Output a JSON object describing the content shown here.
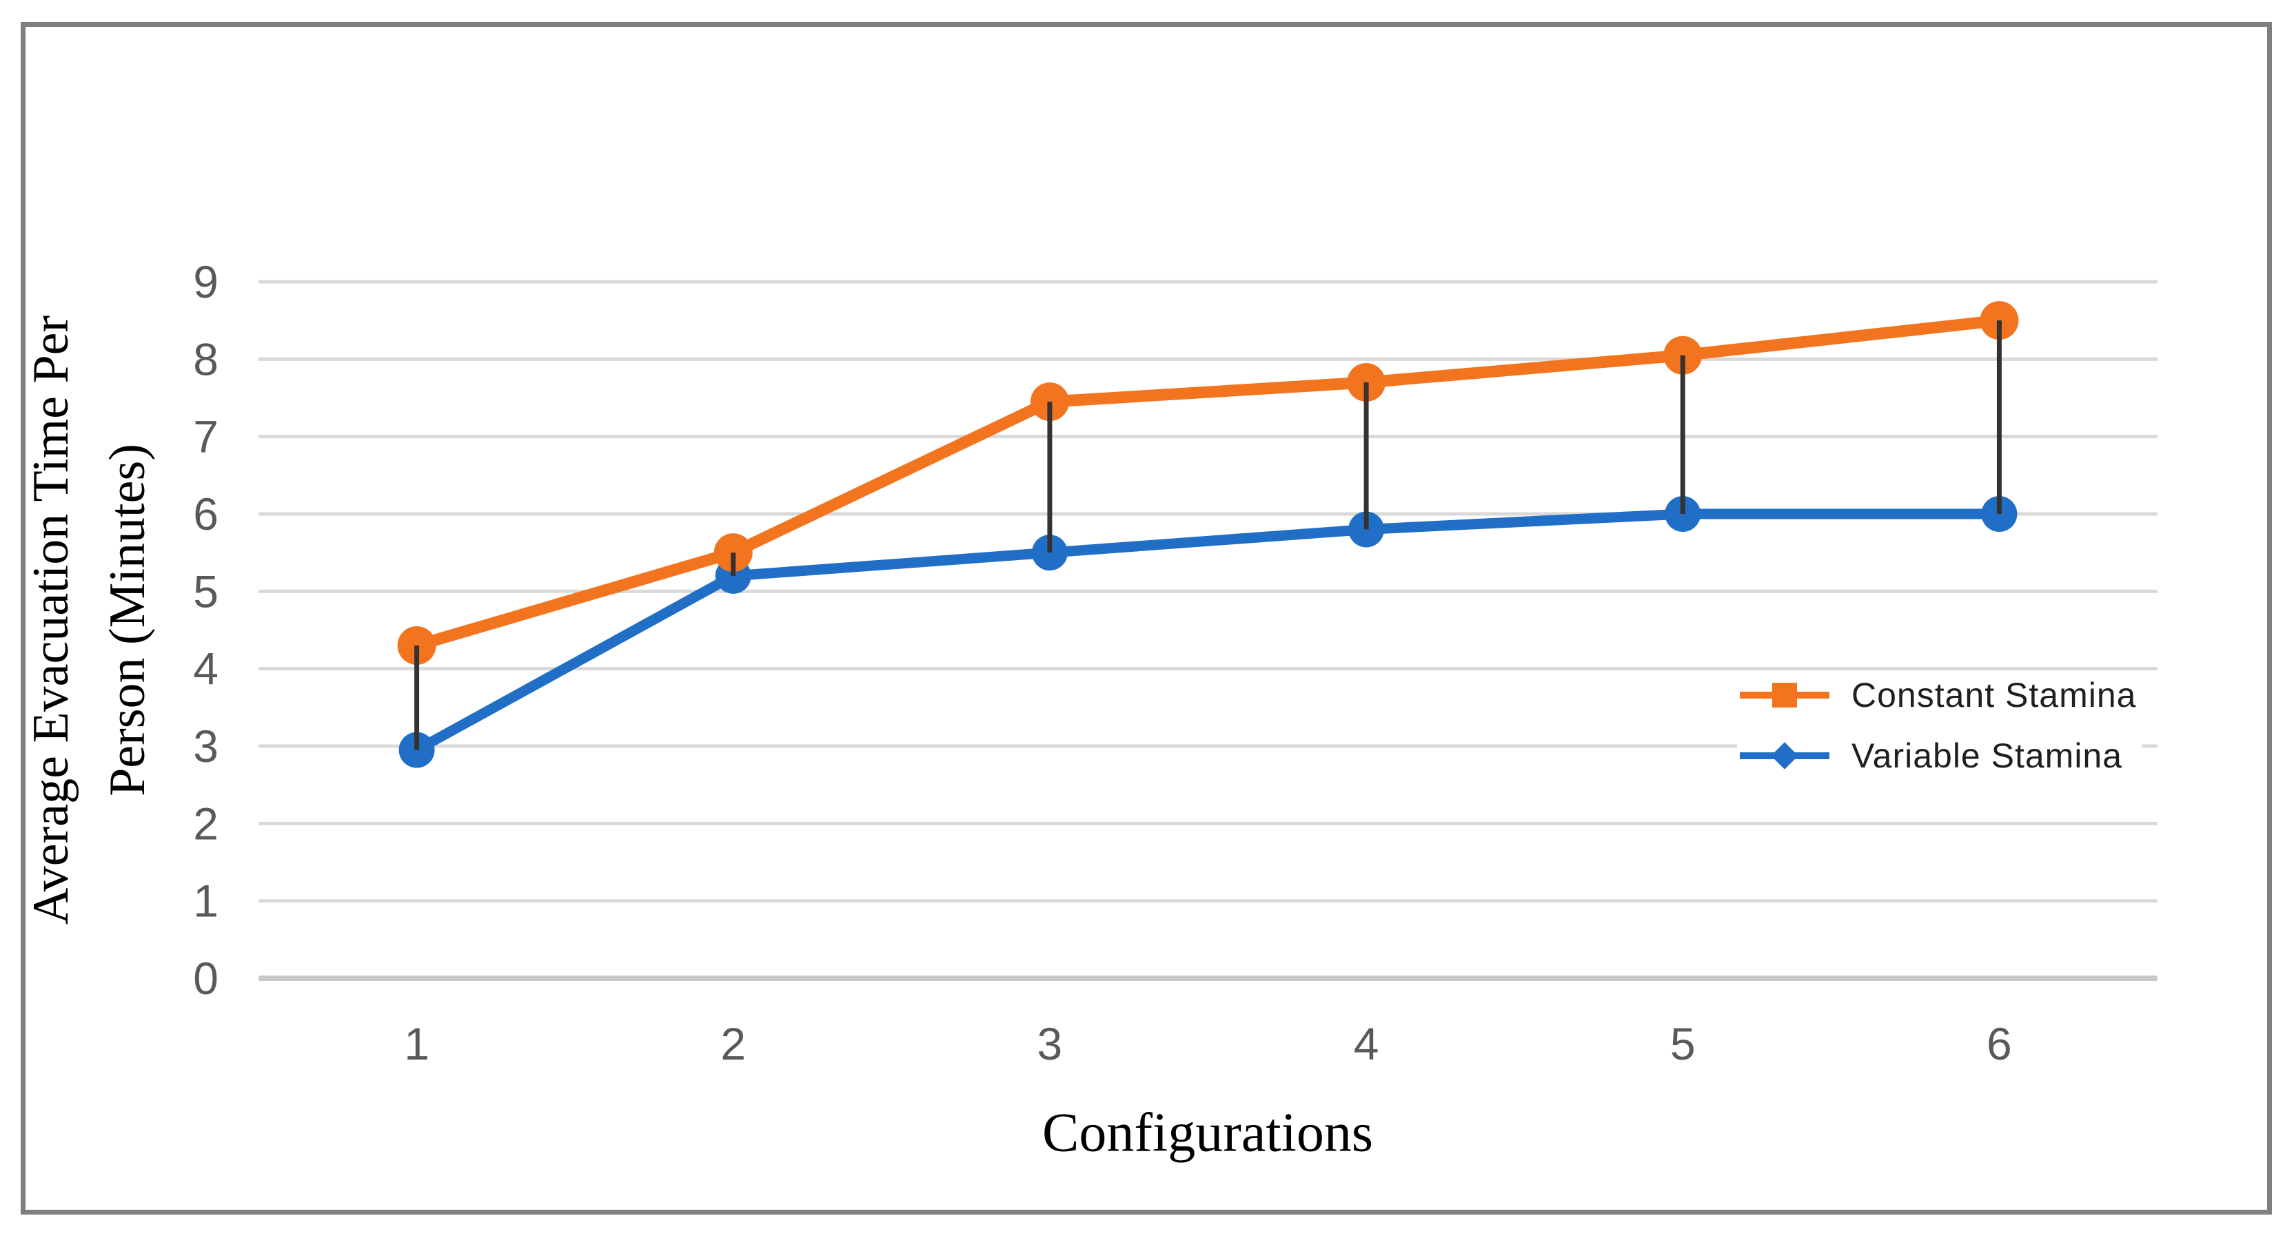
{
  "chart_data": {
    "type": "line",
    "categories": [
      "1",
      "2",
      "3",
      "4",
      "5",
      "6"
    ],
    "series": [
      {
        "name": "Constant Stamina",
        "color": "#F2741E",
        "chart_marker": "circle",
        "legend_marker": "square",
        "values": [
          4.3,
          5.5,
          7.45,
          7.7,
          8.05,
          8.5
        ]
      },
      {
        "name": "Variable Stamina",
        "color": "#216EC6",
        "chart_marker": "circle",
        "legend_marker": "diamond",
        "values": [
          2.95,
          5.2,
          5.5,
          5.8,
          6.0,
          6.0
        ]
      }
    ],
    "connectors": {
      "present": true,
      "color": "#363230",
      "description": "vertical dark line joining the two series values at each configuration"
    },
    "xlabel": "Configurations",
    "ylabel_lines": [
      "Average Evacuation Time Per",
      "Person (Minutes)"
    ],
    "ylim": [
      0,
      9
    ],
    "yticks": [
      "0",
      "1",
      "2",
      "3",
      "4",
      "5",
      "6",
      "7",
      "8",
      "9"
    ],
    "grid": "horizontal",
    "legend_position": "middle-right"
  },
  "colors": {
    "background": "#ffffff",
    "frame_border": "#7f7f7f",
    "gridline": "#d9d9d9",
    "baseline": "#c9c9c9",
    "tick_label": "#595959",
    "axis_title": "#000000",
    "legend_text": "#1f1f1f",
    "series_orange": "#F2741E",
    "series_blue": "#216EC6",
    "connector": "#363230"
  }
}
